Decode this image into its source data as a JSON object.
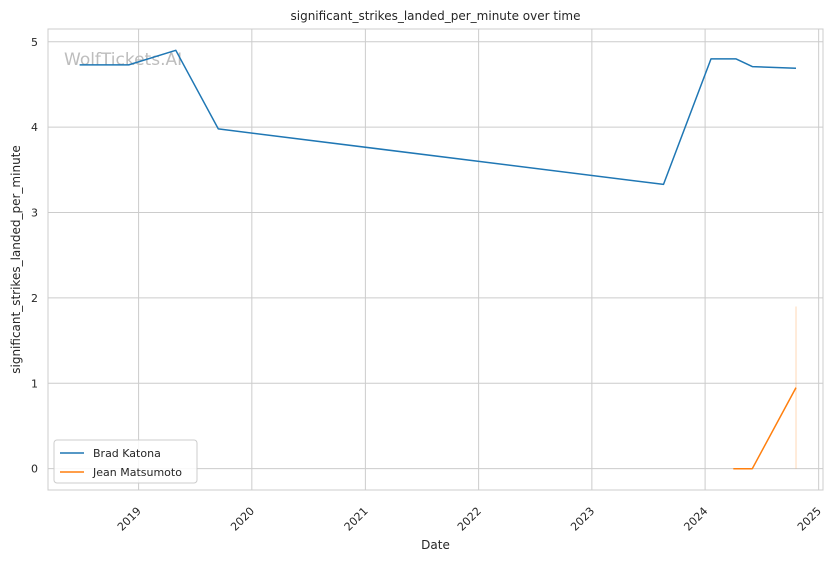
{
  "chart_data": {
    "type": "line",
    "title": "significant_strikes_landed_per_minute over time",
    "xlabel": "Date",
    "ylabel": "significant_strikes_landed_per_minute",
    "watermark": "WolfTickets.AI",
    "x_ticks": [
      "2019",
      "2020",
      "2021",
      "2022",
      "2023",
      "2024",
      "2025"
    ],
    "y_ticks": [
      "0",
      "1",
      "2",
      "3",
      "4",
      "5"
    ],
    "xlim": [
      "2018-03-15",
      "2025-01-15"
    ],
    "ylim": [
      -0.25,
      5.15
    ],
    "grid": true,
    "legend_position": "lower-left",
    "series": [
      {
        "name": "Brad Katona",
        "color": "#1f77b4",
        "points": [
          {
            "x": "2018-06-25",
            "y": 4.73
          },
          {
            "x": "2018-11-30",
            "y": 4.73
          },
          {
            "x": "2019-05-01",
            "y": 4.9
          },
          {
            "x": "2019-09-15",
            "y": 3.98
          },
          {
            "x": "2023-08-20",
            "y": 3.33
          },
          {
            "x": "2024-01-20",
            "y": 4.8
          },
          {
            "x": "2024-04-10",
            "y": 4.8
          },
          {
            "x": "2024-06-01",
            "y": 4.71
          },
          {
            "x": "2024-10-20",
            "y": 4.69
          }
        ]
      },
      {
        "name": "Jean Matsumoto",
        "color": "#ff7f0e",
        "points": [
          {
            "x": "2024-04-01",
            "y": 0.0
          },
          {
            "x": "2024-06-01",
            "y": 0.0
          },
          {
            "x": "2024-10-20",
            "y": 0.95
          }
        ],
        "band": {
          "x": "2024-10-20",
          "low": 0.0,
          "high": 1.9
        }
      }
    ]
  }
}
